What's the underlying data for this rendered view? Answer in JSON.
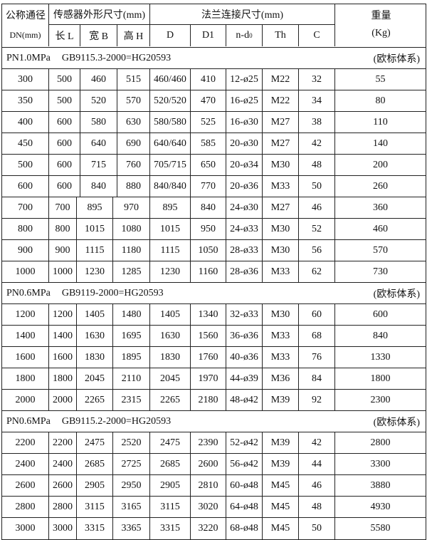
{
  "header": {
    "dn_label": "公称通径",
    "dn_unit": "DN(mm)",
    "sensor_group": "传感器外形尺寸(mm)",
    "flange_group": "法兰连接尺寸(mm)",
    "weight_label": "重量",
    "weight_unit": "(Kg)",
    "columns": [
      "长 L",
      "宽 B",
      "高 H",
      "D",
      "D1",
      "n-d",
      "Th",
      "C"
    ],
    "nd_subscript": "0"
  },
  "sections": [
    {
      "pressure": "PN1.0MPa",
      "standard": "GB9115.3-2000=HG20593",
      "system": "(欧标体系)",
      "rows": [
        [
          "300",
          "500",
          "460",
          "515",
          "460/460",
          "410",
          "12-ø25",
          "M22",
          "32",
          "55"
        ],
        [
          "350",
          "500",
          "520",
          "570",
          "520/520",
          "470",
          "16-ø25",
          "M22",
          "34",
          "80"
        ],
        [
          "400",
          "600",
          "580",
          "630",
          "580/580",
          "525",
          "16-ø30",
          "M27",
          "38",
          "110"
        ],
        [
          "450",
          "600",
          "640",
          "690",
          "640/640",
          "585",
          "20-ø30",
          "M27",
          "42",
          "140"
        ],
        [
          "500",
          "600",
          "715",
          "760",
          "705/715",
          "650",
          "20-ø34",
          "M30",
          "48",
          "200"
        ],
        [
          "600",
          "600",
          "840",
          "880",
          "840/840",
          "770",
          "20-ø36",
          "M33",
          "50",
          "260"
        ],
        [
          "700",
          "700",
          "895",
          "970",
          "895",
          "840",
          "24-ø30",
          "M27",
          "46",
          "360"
        ],
        [
          "800",
          "800",
          "1015",
          "1080",
          "1015",
          "950",
          "24-ø33",
          "M30",
          "52",
          "460"
        ],
        [
          "900",
          "900",
          "1115",
          "1180",
          "1115",
          "1050",
          "28-ø33",
          "M30",
          "56",
          "570"
        ],
        [
          "1000",
          "1000",
          "1230",
          "1285",
          "1230",
          "1160",
          "28-ø36",
          "M33",
          "62",
          "730"
        ]
      ]
    },
    {
      "pressure": "PN0.6MPa",
      "standard": "GB9119-2000=HG20593",
      "system": "(欧标体系)",
      "rows": [
        [
          "1200",
          "1200",
          "1405",
          "1480",
          "1405",
          "1340",
          "32-ø33",
          "M30",
          "60",
          "600"
        ],
        [
          "1400",
          "1400",
          "1630",
          "1695",
          "1630",
          "1560",
          "36-ø36",
          "M33",
          "68",
          "840"
        ],
        [
          "1600",
          "1600",
          "1830",
          "1895",
          "1830",
          "1760",
          "40-ø36",
          "M33",
          "76",
          "1330"
        ],
        [
          "1800",
          "1800",
          "2045",
          "2110",
          "2045",
          "1970",
          "44-ø39",
          "M36",
          "84",
          "1800"
        ],
        [
          "2000",
          "2000",
          "2265",
          "2315",
          "2265",
          "2180",
          "48-ø42",
          "M39",
          "92",
          "2300"
        ]
      ]
    },
    {
      "pressure": "PN0.6MPa",
      "standard": "GB9115.2-2000=HG20593",
      "system": "(欧标体系)",
      "rows": [
        [
          "2200",
          "2200",
          "2475",
          "2520",
          "2475",
          "2390",
          "52-ø42",
          "M39",
          "42",
          "2800"
        ],
        [
          "2400",
          "2400",
          "2685",
          "2725",
          "2685",
          "2600",
          "56-ø42",
          "M39",
          "44",
          "3300"
        ],
        [
          "2600",
          "2600",
          "2905",
          "2950",
          "2905",
          "2810",
          "60-ø48",
          "M45",
          "46",
          "3880"
        ],
        [
          "2800",
          "2800",
          "3115",
          "3165",
          "3115",
          "3020",
          "64-ø48",
          "M45",
          "48",
          "4930"
        ],
        [
          "3000",
          "3000",
          "3315",
          "3365",
          "3315",
          "3220",
          "68-ø48",
          "M45",
          "50",
          "5580"
        ]
      ]
    }
  ]
}
